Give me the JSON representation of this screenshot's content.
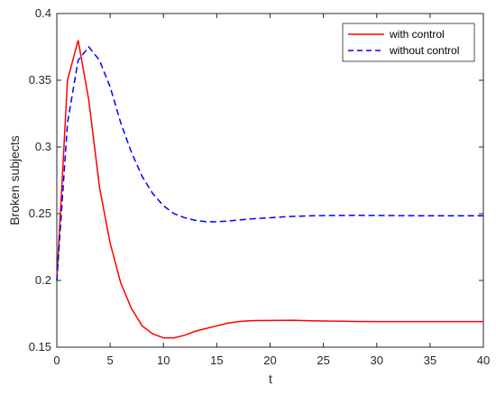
{
  "chart_data": {
    "type": "line",
    "title": "",
    "xlabel": "t",
    "ylabel": "Broken subjects",
    "xlim": [
      0,
      40
    ],
    "ylim": [
      0.15,
      0.4
    ],
    "xticks": [
      0,
      5,
      10,
      15,
      20,
      25,
      30,
      35,
      40
    ],
    "yticks": [
      0.15,
      0.2,
      0.25,
      0.3,
      0.35,
      0.4
    ],
    "xtick_labels": [
      "0",
      "5",
      "10",
      "15",
      "20",
      "25",
      "30",
      "35",
      "40"
    ],
    "ytick_labels": [
      "0.15",
      "0.2",
      "0.25",
      "0.3",
      "0.35",
      "0.4"
    ],
    "grid": false,
    "legend_position": "top-right",
    "series": [
      {
        "name": "with control",
        "color": "#ff0000",
        "style": "solid",
        "x": [
          0,
          1,
          2,
          3,
          4,
          5,
          6,
          7,
          8,
          9,
          10,
          11,
          12,
          13,
          14,
          15,
          16,
          17,
          18,
          19,
          20,
          22,
          24,
          26,
          28,
          30,
          32,
          34,
          36,
          38,
          40
        ],
        "y": [
          0.2,
          0.35,
          0.38,
          0.335,
          0.27,
          0.228,
          0.198,
          0.179,
          0.166,
          0.16,
          0.157,
          0.157,
          0.159,
          0.162,
          0.164,
          0.166,
          0.168,
          0.1692,
          0.1698,
          0.17,
          0.17,
          0.1702,
          0.1698,
          0.1695,
          0.1693,
          0.1692,
          0.1692,
          0.1692,
          0.1692,
          0.1692,
          0.1692
        ]
      },
      {
        "name": "without control",
        "color": "#0000ff",
        "style": "dashed",
        "x": [
          0,
          1,
          2,
          3,
          4,
          5,
          6,
          7,
          8,
          9,
          10,
          11,
          12,
          13,
          14,
          15,
          16,
          18,
          20,
          22,
          24,
          26,
          28,
          30,
          32,
          34,
          36,
          38,
          40
        ],
        "y": [
          0.2,
          0.318,
          0.365,
          0.375,
          0.365,
          0.345,
          0.318,
          0.296,
          0.278,
          0.265,
          0.256,
          0.25,
          0.247,
          0.245,
          0.244,
          0.244,
          0.2445,
          0.246,
          0.247,
          0.248,
          0.2485,
          0.2487,
          0.2488,
          0.2487,
          0.2486,
          0.2485,
          0.2485,
          0.2485,
          0.2485
        ]
      }
    ]
  }
}
